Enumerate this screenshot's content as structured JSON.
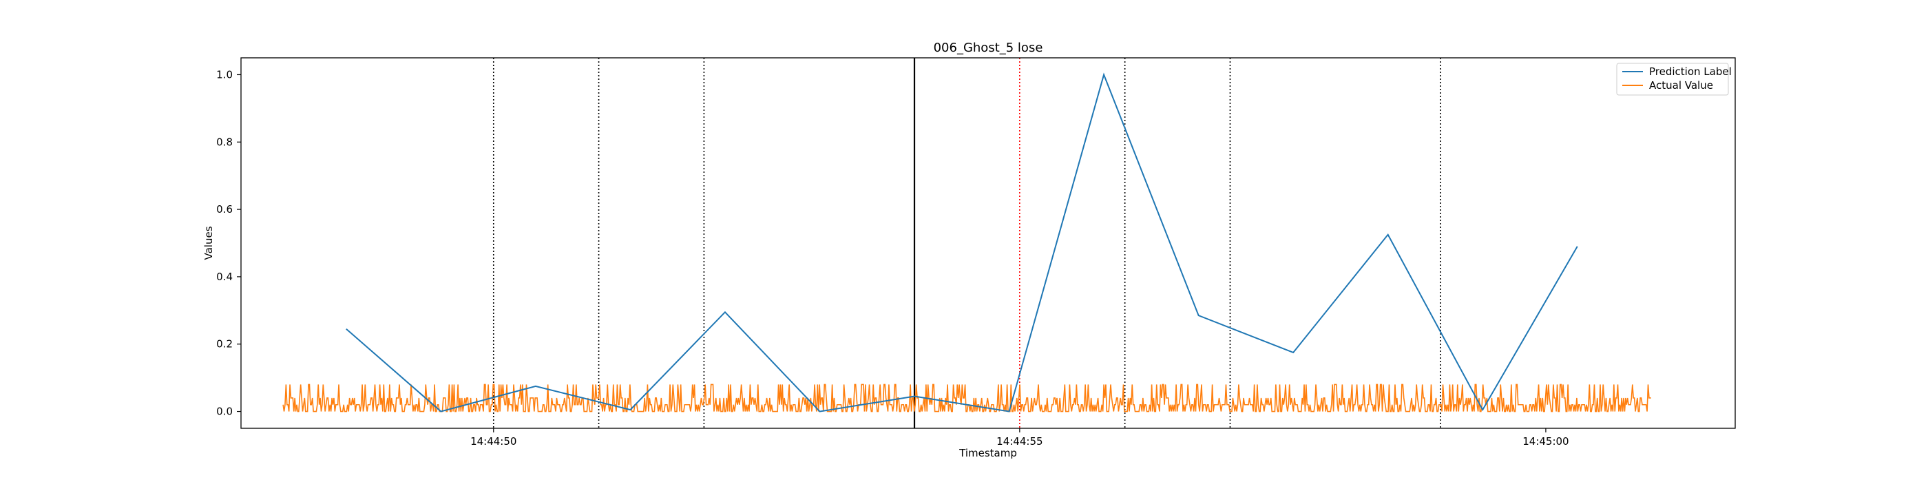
{
  "chart_data": {
    "type": "line",
    "title": "006_Ghost_5 lose",
    "xlabel": "Timestamp",
    "ylabel": "Values",
    "x_range": [
      "14:44:47.6",
      "14:45:01.8"
    ],
    "ylim": [
      -0.05,
      1.05
    ],
    "y_ticks": [
      "0.0",
      "0.2",
      "0.4",
      "0.6",
      "0.8",
      "1.0"
    ],
    "x_ticks": [
      {
        "t": "14:44:50",
        "label": "14:44:50"
      },
      {
        "t": "14:44:55",
        "label": "14:44:55"
      },
      {
        "t": "14:45:00",
        "label": "14:45:00"
      }
    ],
    "grid": false,
    "legend": "top-right",
    "colors": {
      "prediction": "#1f77b4",
      "actual": "#ff7f0e",
      "vline_dotted": "#000000",
      "vline_solid": "#000000",
      "vline_red": "#ff0000"
    },
    "series": [
      {
        "name": "Prediction Label",
        "x": [
          "14:44:48.6",
          "14:44:49.5",
          "14:44:50.4",
          "14:44:51.3",
          "14:44:52.2",
          "14:44:53.1",
          "14:44:54.0",
          "14:44:54.9",
          "14:44:55.8",
          "14:44:56.7",
          "14:44:57.6",
          "14:44:58.5",
          "14:44:59.4",
          "14:45:00.3"
        ],
        "values": [
          0.245,
          0.0,
          0.075,
          0.005,
          0.295,
          0.0,
          0.045,
          0.0,
          1.0,
          0.285,
          0.175,
          0.525,
          0.005,
          0.49
        ]
      },
      {
        "name": "Actual Value",
        "x_start": "14:44:48.0",
        "x_end": "14:45:01.0",
        "levels": [
          0.0,
          0.02,
          0.04,
          0.08
        ],
        "description_levels_alternate": true
      }
    ],
    "vlines": [
      {
        "t": "14:44:50.0",
        "style": "dotted",
        "color": "#000000"
      },
      {
        "t": "14:44:51.0",
        "style": "dotted",
        "color": "#000000"
      },
      {
        "t": "14:44:52.0",
        "style": "dotted",
        "color": "#000000"
      },
      {
        "t": "14:44:54.0",
        "style": "solid",
        "color": "#000000"
      },
      {
        "t": "14:44:55.0",
        "style": "dotted",
        "color": "#ff0000"
      },
      {
        "t": "14:44:56.0",
        "style": "dotted",
        "color": "#000000"
      },
      {
        "t": "14:44:57.0",
        "style": "dotted",
        "color": "#000000"
      },
      {
        "t": "14:44:59.0",
        "style": "dotted",
        "color": "#000000"
      }
    ]
  }
}
